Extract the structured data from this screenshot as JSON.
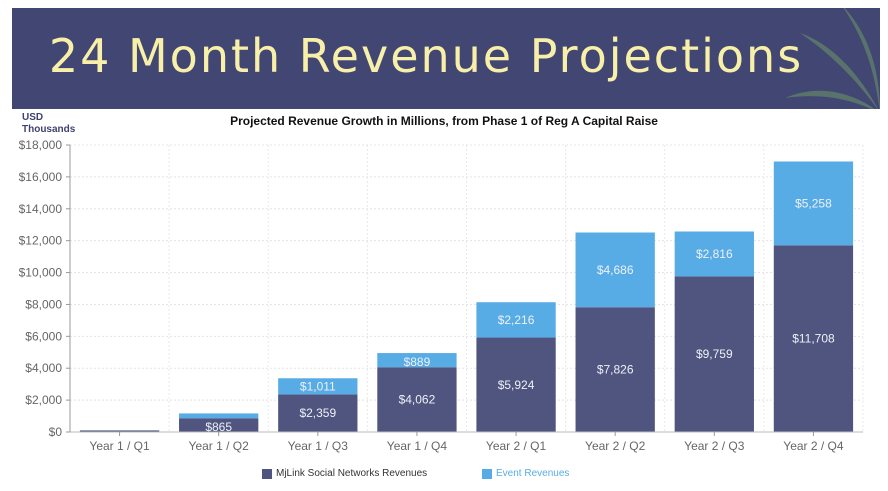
{
  "banner": {
    "title": "24 Month Revenue Projections"
  },
  "colors": {
    "banner_bg": "#414673",
    "title_text": "#f8f0a8",
    "series_dark": "#4f557e",
    "series_light": "#58ace6"
  },
  "unit_label_line1": "USD",
  "unit_label_line2": "Thousands",
  "chart_data": {
    "type": "bar",
    "stacked": true,
    "title": "Projected Revenue Growth in Millions, from Phase 1 of Reg A Capital Raise",
    "ylabel": "USD Thousands",
    "xlabel": "",
    "ylim": [
      0,
      18000
    ],
    "yticks": [
      0,
      2000,
      4000,
      6000,
      8000,
      10000,
      12000,
      14000,
      16000,
      18000
    ],
    "ytick_labels": [
      "$0",
      "$2,000",
      "$4,000",
      "$6,000",
      "$8,000",
      "$10,000",
      "$12,000",
      "$14,000",
      "$16,000",
      "$18,000"
    ],
    "grid": true,
    "legend_position": "bottom",
    "categories": [
      "Year 1 / Q1",
      "Year 1 / Q2",
      "Year 1 / Q3",
      "Year 1 / Q4",
      "Year 2 / Q1",
      "Year 2 / Q2",
      "Year 2 / Q3",
      "Year 2 / Q4"
    ],
    "series": [
      {
        "name": "MjLink Social Networks Revenues",
        "color": "#4f557e",
        "values": [
          100,
          865,
          2359,
          4062,
          5924,
          7826,
          9759,
          11708
        ],
        "labels": [
          "",
          "$865",
          "$2,359",
          "$4,062",
          "$5,924",
          "$7,826",
          "$9,759",
          "$11,708"
        ]
      },
      {
        "name": "Event Revenues",
        "color": "#58ace6",
        "values": [
          0,
          300,
          1011,
          889,
          2216,
          4686,
          2816,
          5258
        ],
        "labels": [
          "",
          "",
          "$1,011",
          "$889",
          "$2,216",
          "$4,686",
          "$2,816",
          "$5,258"
        ]
      }
    ]
  }
}
